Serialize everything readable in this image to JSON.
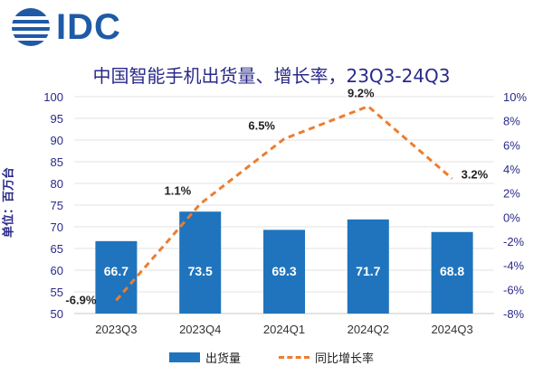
{
  "header": {
    "logo_text": "IDC",
    "title": "中国智能手机出货量、增长率，23Q3-24Q3"
  },
  "colors": {
    "brand": "#1f5aa6",
    "bar": "#1f74bd",
    "line": "#ee7d2e",
    "title": "#2a2a8a"
  },
  "chart_data": {
    "type": "bar",
    "categories": [
      "2023Q3",
      "2023Q4",
      "2024Q1",
      "2024Q2",
      "2024Q3"
    ],
    "series": [
      {
        "name": "出货量",
        "type": "bar",
        "axis": "left",
        "values": [
          66.7,
          73.5,
          69.3,
          71.7,
          68.8
        ],
        "labels": [
          "66.7",
          "73.5",
          "69.3",
          "71.7",
          "68.8"
        ]
      },
      {
        "name": "同比增长率",
        "type": "line",
        "axis": "right",
        "values": [
          -6.9,
          1.1,
          6.5,
          9.2,
          3.2
        ],
        "labels": [
          "-6.9%",
          "1.1%",
          "6.5%",
          "9.2%",
          "3.2%"
        ]
      }
    ],
    "title": "中国智能手机出货量、增长率，23Q3-24Q3",
    "ylabel": "单位：百万台",
    "ylim": [
      50,
      100
    ],
    "yticks": [
      "50",
      "55",
      "60",
      "65",
      "70",
      "75",
      "80",
      "85",
      "90",
      "95",
      "100"
    ],
    "y2lim": [
      -8,
      10
    ],
    "y2ticks": [
      "-8%",
      "-6%",
      "-4%",
      "-2%",
      "0%",
      "2%",
      "4%",
      "6%",
      "8%",
      "10%"
    ],
    "grid": true,
    "legend": "bottom-center"
  }
}
